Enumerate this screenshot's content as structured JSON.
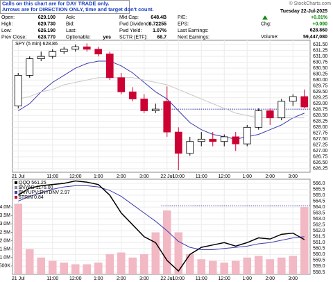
{
  "header": {
    "notes": [
      "Calls on this chart are for DAY TRADE only.",
      "Arrows are for DIRECTION ONLY, time and target don't count."
    ],
    "source": "© StockCharts.com",
    "quote": {
      "col1": [
        {
          "label": "Open:",
          "value": "629.100"
        },
        {
          "label": "High:",
          "value": "629.730"
        },
        {
          "label": "Low:",
          "value": "626.190"
        },
        {
          "label": "Prev Close:",
          "value": "628.770"
        }
      ],
      "col2": [
        {
          "label": "Ask:"
        },
        {
          "label": "Bid:"
        },
        {
          "label": "Last:"
        },
        {
          "label": "Optionable:",
          "value": "yes"
        }
      ],
      "col3": [
        {
          "label": "Mkt Cap:",
          "value": "648.4B"
        },
        {
          "label": "Fwd Dividend:",
          "value": "6.72255"
        },
        {
          "label": "Fwd Yield:",
          "value": "1.07%"
        },
        {
          "label": "SCTR (ETF):",
          "value": "66.7"
        }
      ],
      "col4": [
        {
          "label": "P/E:"
        },
        {
          "label": "EPS:"
        },
        {
          "label": "Last Earnings:"
        },
        {
          "label": "Next Earnings:"
        }
      ],
      "col5": [
        {
          "value": "Tuesday 22-Jul-2025"
        },
        {
          "value": "+0.01%"
        },
        {
          "label": "Chg:",
          "value": "+0.090"
        },
        {
          "value": "628.860"
        },
        {
          "label": "Volume:",
          "value": "59,447,080"
        }
      ]
    }
  },
  "chart_data": [
    {
      "type": "candlestick",
      "legend": "SPY (5 min) 628.86",
      "categories": [
        "21 Jul",
        null,
        null,
        "11:00",
        null,
        "12:00",
        null,
        "1:00",
        null,
        "2:00",
        null,
        "3:00",
        null,
        "22 Jul",
        "10:00",
        null,
        "11:00",
        null,
        "12:00",
        null,
        "1:00",
        null,
        "2:00",
        null,
        "3:00",
        null
      ],
      "open": [
        628.9,
        630.2,
        630.9,
        631.0,
        631.2,
        631.3,
        631.4,
        631.3,
        631.1,
        630.1,
        629.5,
        629.2,
        628.7,
        629.1,
        627.8,
        626.9,
        627.4,
        627.5,
        627.4,
        627.6,
        627.3,
        628.0,
        628.7,
        628.4,
        629.1,
        629.3
      ],
      "high": [
        630.3,
        631.0,
        631.2,
        631.3,
        631.4,
        631.5,
        631.55,
        631.4,
        631.2,
        630.3,
        629.7,
        629.4,
        629.0,
        629.73,
        628.0,
        627.6,
        627.8,
        627.8,
        627.7,
        627.8,
        628.1,
        628.8,
        628.8,
        629.2,
        629.4,
        629.6
      ],
      "low": [
        628.8,
        630.1,
        630.8,
        630.9,
        631.1,
        631.2,
        631.2,
        631.0,
        630.0,
        629.4,
        629.1,
        628.6,
        628.6,
        627.6,
        626.19,
        626.8,
        627.2,
        627.2,
        627.2,
        627.0,
        627.2,
        627.9,
        628.1,
        628.3,
        628.9,
        628.8
      ],
      "close": [
        630.2,
        630.9,
        631.0,
        631.2,
        631.3,
        631.4,
        631.3,
        631.1,
        630.1,
        629.5,
        629.2,
        628.7,
        628.77,
        627.8,
        626.9,
        627.4,
        627.5,
        627.4,
        627.6,
        627.3,
        628.0,
        628.7,
        628.4,
        629.1,
        629.3,
        628.86
      ],
      "up_color": "#000000",
      "down_color": "#cc0033",
      "overlays": [
        {
          "color": "#3b3bb0",
          "values": [
            628.7,
            629.0,
            629.5,
            629.9,
            630.2,
            630.5,
            630.7,
            630.8,
            630.8,
            630.6,
            630.3,
            629.9,
            629.5,
            629.2,
            628.7,
            628.2,
            627.9,
            627.7,
            627.6,
            627.5,
            627.6,
            627.7,
            627.9,
            628.1,
            628.4,
            628.6
          ]
        },
        {
          "color": "#c8c8c8",
          "values": [
            629.2,
            629.3,
            629.5,
            629.6,
            629.8,
            629.9,
            630.0,
            630.1,
            630.1,
            630.1,
            630.1,
            630.0,
            629.9,
            629.8,
            629.6,
            629.4,
            629.2,
            629.0,
            628.8,
            628.6,
            628.5,
            628.4,
            628.4,
            628.4,
            628.4,
            628.4
          ]
        }
      ],
      "reference_line": 628.77,
      "ylim": [
        626.1,
        631.68
      ],
      "yticks": [
        626.25,
        {
          "value": 626.5,
          "label": "626.50"
        },
        626.75,
        {
          "value": 627,
          "label": "627.00"
        },
        627.25,
        {
          "value": 627.5,
          "label": "627.50"
        },
        627.75,
        {
          "value": 628,
          "label": "628.00"
        },
        628.25,
        {
          "value": 628.5,
          "label": "628.50"
        },
        628.75,
        {
          "value": 629,
          "label": "629.00"
        },
        629.25,
        {
          "value": 629.5,
          "label": "629.50"
        },
        629.75,
        {
          "value": 630,
          "label": "630.00"
        },
        630.25,
        {
          "value": 630.5,
          "label": "630.50"
        },
        630.75,
        {
          "value": 631,
          "label": "631.00"
        },
        631.25,
        {
          "value": 631.5,
          "label": "631.50"
        }
      ],
      "grid": true
    },
    {
      "type": "line",
      "categories": [
        "21 Jul",
        null,
        null,
        "11:00",
        null,
        "12:00",
        null,
        "1:00",
        null,
        "2:00",
        null,
        "3:00",
        null,
        "22 Jul",
        "10:00",
        null,
        "11:00",
        null,
        "12:00",
        null,
        "1:00",
        null,
        "2:00",
        null,
        "3:00",
        null
      ],
      "series": [
        {
          "name": "QQQ 561.25",
          "color": "#000000",
          "values": [
            565.0,
            565.6,
            565.8,
            565.9,
            566.0,
            566.2,
            566.1,
            565.9,
            565.0,
            563.5,
            562.5,
            561.5,
            561.0,
            559.5,
            558.6,
            560.0,
            560.6,
            560.8,
            561.0,
            560.7,
            561.0,
            561.4,
            561.3,
            561.7,
            561.8,
            561.25
          ]
        }
      ],
      "legend_extra": [
        {
          "name": "$NYAD 1176.00",
          "color": "#888888"
        },
        {
          "name": "$NYUPV:$NYDNV 2.97",
          "color": "#3b3bb0"
        },
        {
          "name": "$TRIN 0.84",
          "color": "#cc0033"
        }
      ],
      "overlays": [
        {
          "color": "#3b3bb0",
          "values": [
            564.5,
            564.9,
            565.2,
            565.5,
            565.7,
            565.8,
            565.8,
            565.7,
            565.4,
            564.9,
            564.2,
            563.5,
            562.8,
            562.0,
            561.1,
            560.6,
            560.4,
            560.4,
            560.5,
            560.6,
            560.7,
            560.9,
            561.0,
            561.2,
            561.4,
            561.5
          ]
        }
      ],
      "volume": {
        "color": "#f2b8c4",
        "values": [
          4200000,
          1500000,
          1000000,
          800000,
          700000,
          600000,
          600000,
          700000,
          1200000,
          1300000,
          1000000,
          1200000,
          2500000,
          3800000,
          2500000,
          1200000,
          900000,
          800000,
          700000,
          800000,
          1000000,
          1100000,
          900000,
          1000000,
          1100000,
          4000000
        ],
        "ylim": [
          0,
          5660000
        ],
        "yticks": [
          {
            "value": 500000,
            "label": "500K"
          },
          {
            "value": 1000000,
            "label": "1.0M"
          },
          {
            "value": 1500000,
            "label": "1.5M"
          },
          {
            "value": 2000000,
            "label": "2.0M"
          },
          {
            "value": 2500000,
            "label": "2.5M"
          },
          {
            "value": 3000000,
            "label": "3.0M"
          },
          {
            "value": 3500000,
            "label": "3.5M"
          },
          {
            "value": 4000000,
            "label": "4.0M"
          }
        ]
      },
      "reference_line": 564.1,
      "ylim": [
        558.32,
        566.35
      ],
      "yticks": [
        558.5,
        {
          "value": 559,
          "label": "559.0"
        },
        559.5,
        {
          "value": 560,
          "label": "560.0"
        },
        560.5,
        {
          "value": 561,
          "label": "561.0"
        },
        561.5,
        {
          "value": 562,
          "label": "562.0"
        },
        562.5,
        {
          "value": 563,
          "label": "563.0"
        },
        563.5,
        {
          "value": 564,
          "label": "564.0"
        },
        564.5,
        {
          "value": 565,
          "label": "565.0"
        },
        565.5,
        {
          "value": 566,
          "label": "566.0"
        }
      ],
      "grid": true
    }
  ]
}
